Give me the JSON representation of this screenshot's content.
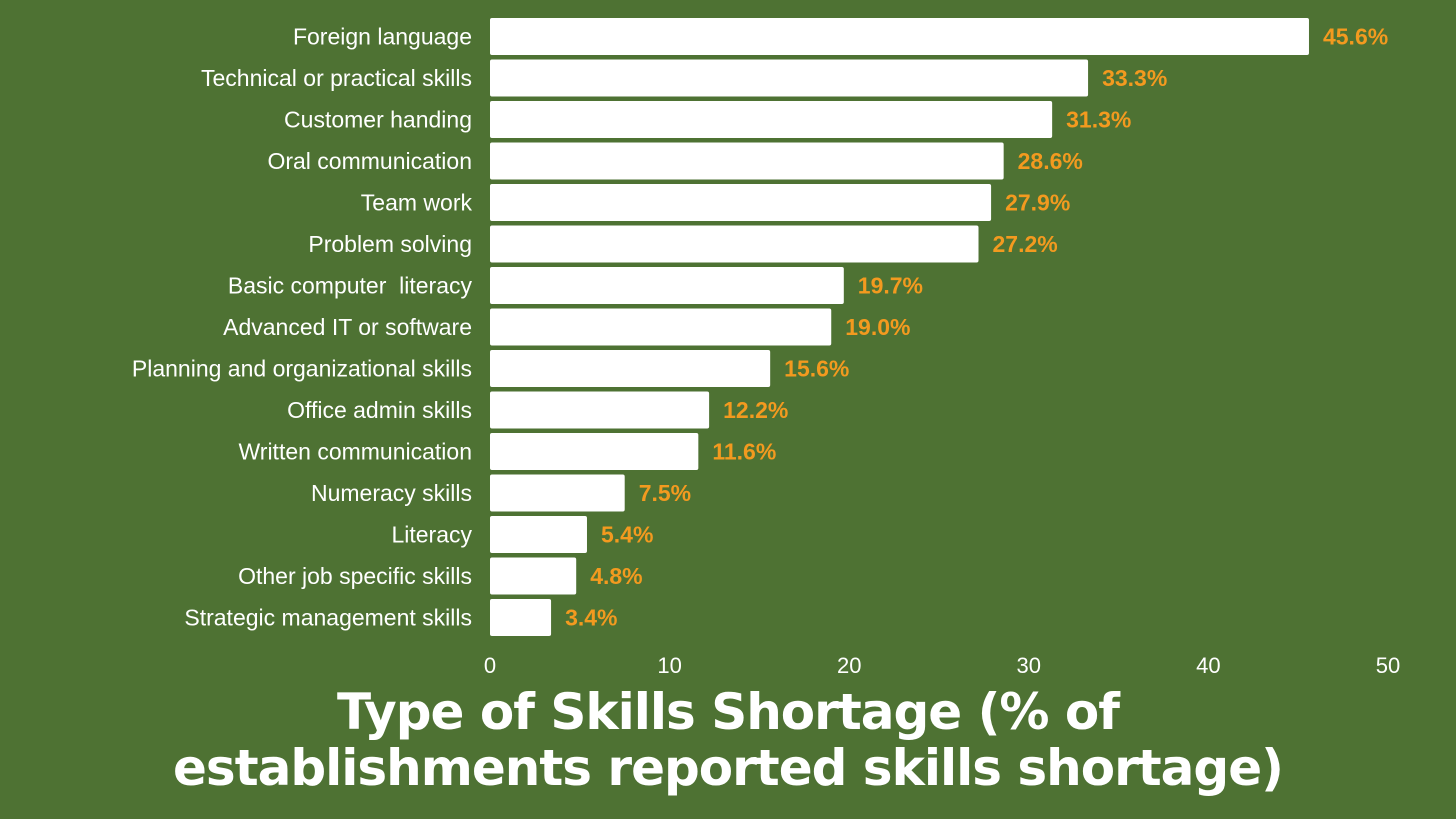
{
  "chart_data": {
    "type": "bar",
    "orientation": "horizontal",
    "title": "Type of Skills Shortage (% of establishments reported skills shortage)",
    "categories": [
      "Foreign language",
      "Technical or practical skills",
      "Customer handing",
      "Oral communication",
      "Team work",
      "Problem solving",
      "Basic computer  literacy",
      "Advanced IT or software",
      "Planning and organizational skills",
      "Office admin skills",
      "Written communication",
      "Numeracy skills",
      "Literacy",
      "Other job specific skills",
      "Strategic management skills"
    ],
    "values": [
      45.6,
      33.3,
      31.3,
      28.6,
      27.9,
      27.2,
      19.7,
      19.0,
      15.6,
      12.2,
      11.6,
      7.5,
      5.4,
      4.8,
      3.4
    ],
    "value_labels": [
      "45.6%",
      "33.3%",
      "31.3%",
      "28.6%",
      "27.9%",
      "27.2%",
      "19.7%",
      "19.0%",
      "15.6%",
      "12.2%",
      "11.6%",
      "7.5%",
      "5.4%",
      "4.8%",
      "3.4%"
    ],
    "color": "#ffffff",
    "label_color": "#f39a1f",
    "background": "#4e7233",
    "xlim": [
      0,
      50
    ],
    "xticks": [
      0,
      10,
      20,
      30,
      40,
      50
    ],
    "grid": false
  }
}
